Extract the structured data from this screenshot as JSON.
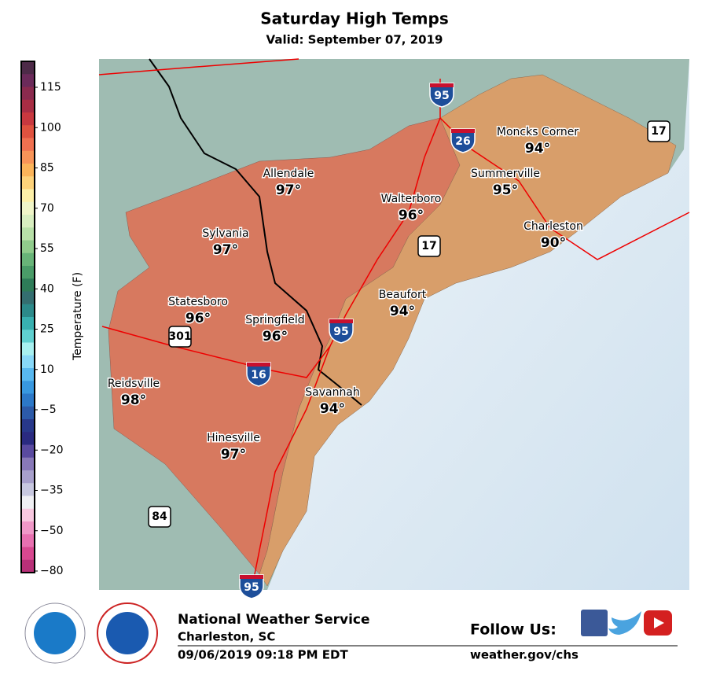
{
  "header": {
    "title": "Saturday High Temps",
    "subtitle": "Valid: September 07, 2019"
  },
  "legend": {
    "label": "Temperature (F)",
    "ticks": [
      115,
      100,
      85,
      70,
      55,
      40,
      25,
      10,
      {
        "value": -5,
        "label": "−5"
      },
      {
        "value": -20,
        "label": "−20"
      },
      {
        "value": -35,
        "label": "−35"
      },
      {
        "value": -50,
        "label": "−50"
      },
      {
        "value": -80,
        "label": "−80"
      }
    ],
    "colors": [
      "#4d2a48",
      "#6b2a5a",
      "#8a2a4e",
      "#a82d44",
      "#c8383f",
      "#e0523f",
      "#f07050",
      "#f89458",
      "#fbb45a",
      "#fdd27a",
      "#fdf0a8",
      "#f0f5c8",
      "#d8eec0",
      "#b8e0a8",
      "#90cc8c",
      "#68b478",
      "#4a9c68",
      "#2e7c58",
      "#346e70",
      "#2c8a8a",
      "#38b0b0",
      "#60d0d0",
      "#a8f0f0",
      "#88d8f8",
      "#58b8f0",
      "#3898e0",
      "#2c78c8",
      "#2c5aa8",
      "#28388a",
      "#2a2a80",
      "#5a4aa0",
      "#8878b8",
      "#a8a0cc",
      "#c8c8e0",
      "#f0f0f4",
      "#f8c8e0",
      "#f098c8",
      "#e870b0",
      "#d84890",
      "#b83078"
    ]
  },
  "cities": [
    {
      "name": "Moncks Corner",
      "temp": "94°"
    },
    {
      "name": "Summerville",
      "temp": "95°"
    },
    {
      "name": "Allendale",
      "temp": "97°"
    },
    {
      "name": "Walterboro",
      "temp": "96°"
    },
    {
      "name": "Charleston",
      "temp": "90°"
    },
    {
      "name": "Sylvania",
      "temp": "97°"
    },
    {
      "name": "Beaufort",
      "temp": "94°"
    },
    {
      "name": "Statesboro",
      "temp": "96°"
    },
    {
      "name": "Springfield",
      "temp": "96°"
    },
    {
      "name": "Reidsville",
      "temp": "98°"
    },
    {
      "name": "Savannah",
      "temp": "94°"
    },
    {
      "name": "Hinesville",
      "temp": "97°"
    }
  ],
  "shields": [
    "95",
    "26",
    "17",
    "17",
    "95",
    "301",
    "16",
    "84",
    "95"
  ],
  "footer": {
    "org": "National Weather Service",
    "office": "Charleston, SC",
    "issued": "09/06/2019 09:18 PM EDT",
    "follow": "Follow Us:",
    "url": "weather.gov/chs"
  }
}
